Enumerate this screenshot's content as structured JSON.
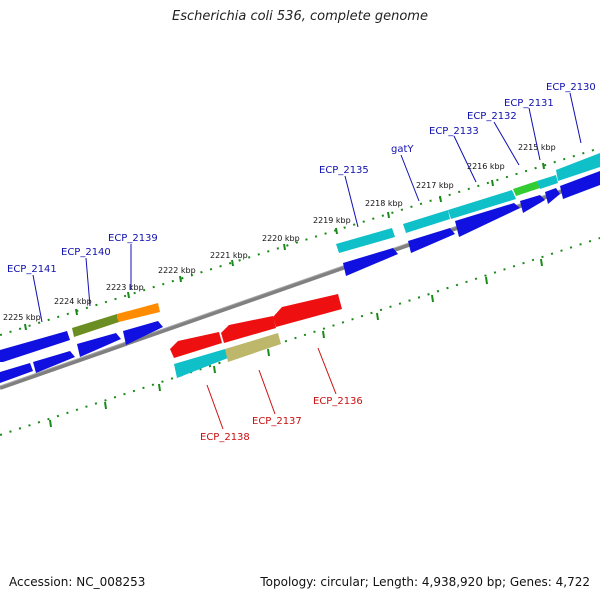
{
  "title": "Escherichia coli 536, complete genome",
  "footer": {
    "accession": "Accession: NC_008253",
    "summary": "Topology: circular; Length: 4,938,920 bp; Genes: 4,722"
  },
  "ticks": [
    "2225 kbp",
    "2224 kbp",
    "2223 kbp",
    "2222 kbp",
    "2221 kbp",
    "2220 kbp",
    "2219 kbp",
    "2218 kbp",
    "2217 kbp",
    "2216 kbp",
    "2215 kbp"
  ],
  "gene_labels": {
    "ECP_2141": "ECP_2141",
    "ECP_2140": "ECP_2140",
    "ECP_2139": "ECP_2139",
    "ECP_2135": "ECP_2135",
    "gatY": "gatY",
    "ECP_2133": "ECP_2133",
    "ECP_2132": "ECP_2132",
    "ECP_2131": "ECP_2131",
    "ECP_2130": "ECP_2130",
    "ECP_2138": "ECP_2138",
    "ECP_2137": "ECP_2137",
    "ECP_2136": "ECP_2136"
  },
  "colors": {
    "backbone": "#808080",
    "tick": "#1a8a1a",
    "forward_label": "#1010b0",
    "reverse_label": "#cc1010",
    "cds": "#1010e0",
    "gene_cyan": "#10c0c8",
    "gene_olive": "#6b8e23",
    "gene_orange": "#ff8c00",
    "gene_green": "#33cc33",
    "gene_red": "#ee1010",
    "gene_khaki": "#bdb76b"
  }
}
